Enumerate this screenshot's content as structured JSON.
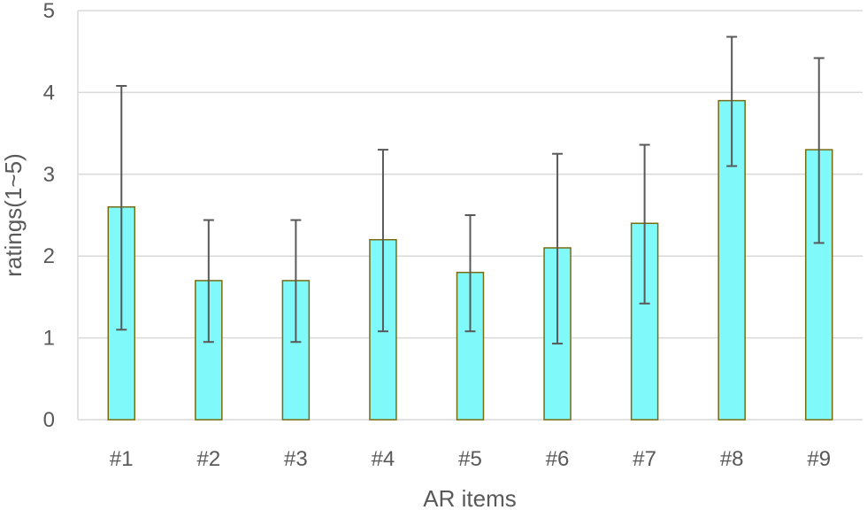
{
  "chart_data": {
    "type": "bar",
    "xlabel": "AR items",
    "ylabel": "ratings(1~5)",
    "categories": [
      "#1",
      "#2",
      "#3",
      "#4",
      "#5",
      "#6",
      "#7",
      "#8",
      "#9"
    ],
    "values": [
      2.6,
      1.7,
      1.7,
      2.2,
      1.8,
      2.1,
      2.4,
      3.9,
      3.3
    ],
    "error_low": [
      1.1,
      0.95,
      0.95,
      1.08,
      1.08,
      0.93,
      1.42,
      3.1,
      2.16
    ],
    "error_high": [
      4.08,
      2.44,
      2.44,
      3.3,
      2.5,
      3.25,
      3.36,
      4.68,
      4.42
    ],
    "ylim": [
      0,
      5
    ],
    "yticks": [
      0,
      1,
      2,
      3,
      4,
      5
    ],
    "grid": true,
    "legend": "none",
    "colors": {
      "bar_fill": "#7ff9f9",
      "bar_stroke": "#7a6a10",
      "error_bar": "#595959",
      "grid": "#d9d9d9",
      "text": "#595959"
    }
  }
}
